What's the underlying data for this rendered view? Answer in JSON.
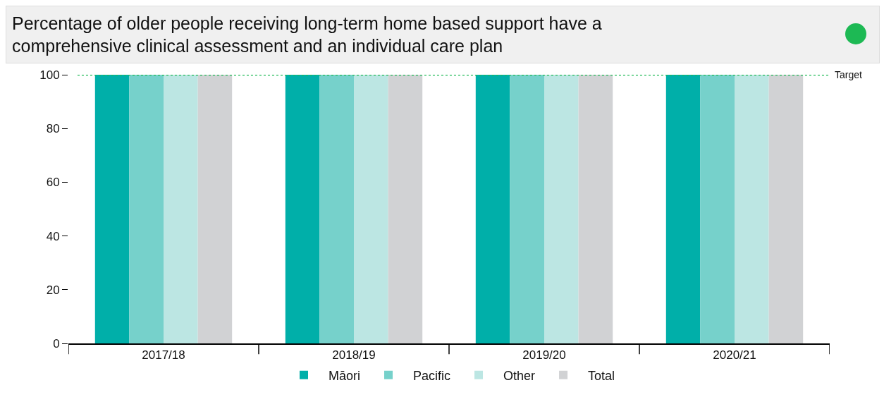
{
  "chart_data": {
    "type": "bar",
    "title": "Percentage of older people receiving long-term home based support have a comprehensive clinical assessment and an individual care plan",
    "categories": [
      "2017/18",
      "2018/19",
      "2019/20",
      "2020/21"
    ],
    "series": [
      {
        "name": "Māori",
        "color": "#00afa9",
        "values": [
          100,
          100,
          100,
          100
        ]
      },
      {
        "name": "Pacific",
        "color": "#76d1cb",
        "values": [
          100,
          100,
          100,
          100
        ]
      },
      {
        "name": "Other",
        "color": "#bce6e3",
        "values": [
          100,
          100,
          100,
          100
        ]
      },
      {
        "name": "Total",
        "color": "#d1d2d4",
        "values": [
          100,
          100,
          100,
          100
        ]
      }
    ],
    "ylim": [
      0,
      100
    ],
    "yticks": [
      0,
      20,
      40,
      60,
      80,
      100
    ],
    "grid": false,
    "legend": "bottom",
    "ref_lines": [
      {
        "axis": "y",
        "value": 100,
        "label": "Target",
        "color": "#1db954",
        "line_style": "dotted"
      }
    ]
  }
}
